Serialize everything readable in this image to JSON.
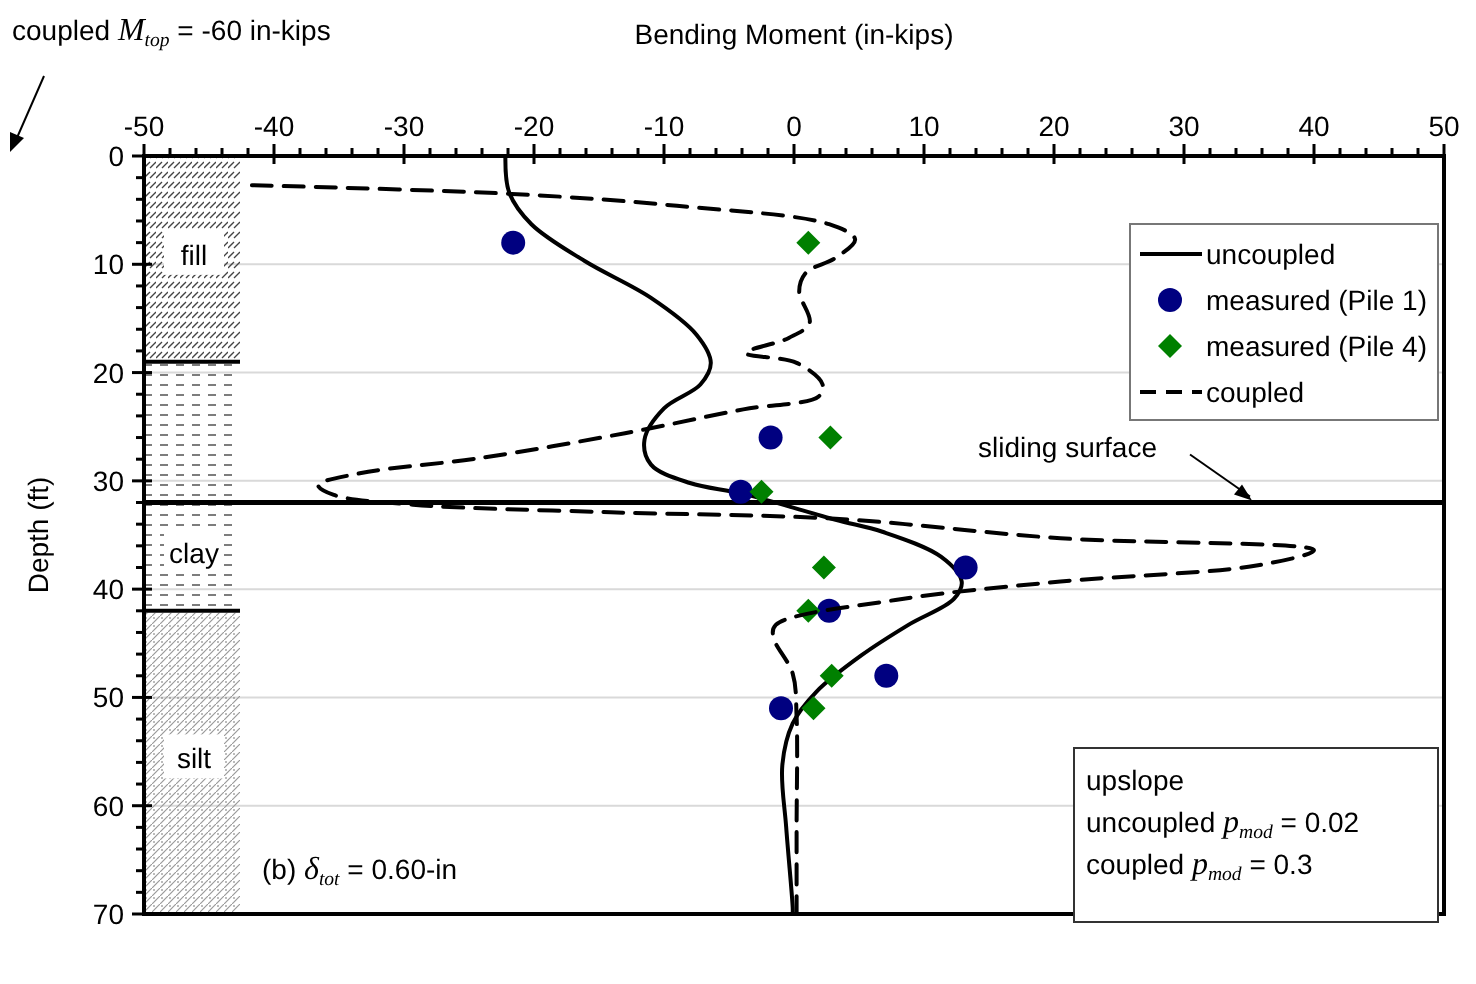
{
  "chart_data": {
    "type": "line",
    "xlabel": "Bending Moment (in-kips)",
    "ylabel": "Depth (ft)",
    "xlim": [
      -50,
      50
    ],
    "xticks": [
      -50,
      {
        "value": -48,
        "label": null
      },
      {
        "value": -46,
        "label": null
      },
      {
        "value": -44,
        "label": null
      },
      {
        "value": -42,
        "label": null
      },
      -40,
      {
        "value": -38,
        "label": null
      },
      {
        "value": -36,
        "label": null
      },
      {
        "value": -34,
        "label": null
      },
      {
        "value": -32,
        "label": null
      },
      -30,
      {
        "value": -28,
        "label": null
      },
      {
        "value": -26,
        "label": null
      },
      {
        "value": -24,
        "label": null
      },
      {
        "value": -22,
        "label": null
      },
      -20,
      {
        "value": -18,
        "label": null
      },
      {
        "value": -16,
        "label": null
      },
      {
        "value": -14,
        "label": null
      },
      {
        "value": -12,
        "label": null
      },
      -10,
      {
        "value": -8,
        "label": null
      },
      {
        "value": -6,
        "label": null
      },
      {
        "value": -4,
        "label": null
      },
      {
        "value": -2,
        "label": null
      },
      0,
      {
        "value": 2,
        "label": null
      },
      {
        "value": 4,
        "label": null
      },
      {
        "value": 6,
        "label": null
      },
      {
        "value": 8,
        "label": null
      },
      10,
      {
        "value": 12,
        "label": null
      },
      {
        "value": 14,
        "label": null
      },
      {
        "value": 16,
        "label": null
      },
      {
        "value": 18,
        "label": null
      },
      20,
      {
        "value": 22,
        "label": null
      },
      {
        "value": 24,
        "label": null
      },
      {
        "value": 26,
        "label": null
      },
      {
        "value": 28,
        "label": null
      },
      30,
      {
        "value": 32,
        "label": null
      },
      {
        "value": 34,
        "label": null
      },
      {
        "value": 36,
        "label": null
      },
      {
        "value": 38,
        "label": null
      },
      40,
      {
        "value": 42,
        "label": null
      },
      {
        "value": 44,
        "label": null
      },
      {
        "value": 46,
        "label": null
      },
      {
        "value": 48,
        "label": null
      },
      50
    ],
    "ylim": [
      70,
      0
    ],
    "yticks": [
      0,
      {
        "value": 2,
        "label": null
      },
      {
        "value": 4,
        "label": null
      },
      {
        "value": 6,
        "label": null
      },
      {
        "value": 8,
        "label": null
      },
      10,
      {
        "value": 12,
        "label": null
      },
      {
        "value": 14,
        "label": null
      },
      {
        "value": 16,
        "label": null
      },
      {
        "value": 18,
        "label": null
      },
      20,
      {
        "value": 22,
        "label": null
      },
      {
        "value": 24,
        "label": null
      },
      {
        "value": 26,
        "label": null
      },
      {
        "value": 28,
        "label": null
      },
      30,
      {
        "value": 32,
        "label": null
      },
      {
        "value": 34,
        "label": null
      },
      {
        "value": 36,
        "label": null
      },
      {
        "value": 38,
        "label": null
      },
      40,
      {
        "value": 42,
        "label": null
      },
      {
        "value": 44,
        "label": null
      },
      {
        "value": 46,
        "label": null
      },
      {
        "value": 48,
        "label": null
      },
      50,
      {
        "value": 52,
        "label": null
      },
      {
        "value": 54,
        "label": null
      },
      {
        "value": 56,
        "label": null
      },
      {
        "value": 58,
        "label": null
      },
      60,
      {
        "value": 62,
        "label": null
      },
      {
        "value": 64,
        "label": null
      },
      {
        "value": 66,
        "label": null
      },
      {
        "value": 68,
        "label": null
      },
      70
    ],
    "grid": "y",
    "legend": "top right",
    "series": [
      {
        "name": "uncoupled",
        "color": "#000000",
        "line_style": "solid",
        "marker": "none",
        "x": [
          -22.2,
          -21.9,
          -20.2,
          -16.1,
          -11.0,
          -7.5,
          -6.4,
          -7.2,
          -10.0,
          -11.5,
          -11.0,
          -8.0,
          -3.9,
          3.2,
          6.8,
          11.3,
          12.9,
          12.3,
          8.8,
          5.2,
          1.7,
          -0.1,
          -0.9,
          -0.6,
          -0.1,
          -0.1
        ],
        "values": [
          0,
          3.4,
          6.3,
          9.7,
          13.1,
          16.5,
          19.1,
          21.1,
          23.3,
          26.2,
          28.5,
          30.2,
          31.2,
          33.6,
          34.7,
          37.0,
          39.3,
          40.9,
          43.3,
          46.1,
          49.5,
          52.4,
          56.3,
          62.0,
          69.4,
          70
        ]
      },
      {
        "name": "measured (Pile 1)",
        "type": "scatter",
        "color": "#000080",
        "marker": "circle",
        "x": [
          -21.6,
          -1.8,
          -4.1,
          13.2,
          2.7,
          7.1,
          -1.0
        ],
        "values": [
          8,
          26,
          31,
          38,
          42,
          48,
          51
        ]
      },
      {
        "name": "measured (Pile 4)",
        "type": "scatter",
        "color": "#008000",
        "marker": "diamond",
        "x": [
          1.1,
          2.8,
          -2.5,
          2.3,
          1.1,
          2.9,
          1.5
        ],
        "values": [
          8,
          26,
          31,
          38,
          42,
          48,
          51
        ]
      },
      {
        "name": "coupled",
        "color": "#000000",
        "line_style": "dashed",
        "marker": "none",
        "x": [
          -41.7,
          -21.7,
          -9.0,
          2.7,
          4.7,
          3.2,
          0.9,
          0.4,
          1.2,
          -0.4,
          -3.7,
          0.2,
          2.2,
          1.9,
          -3.9,
          -13.0,
          -24.2,
          -33.4,
          -36.6,
          -35.4,
          -29.3,
          -14.1,
          3.2,
          20.5,
          40.0,
          35.7,
          20.5,
          7.8,
          -1.4,
          -1.6,
          -0.1,
          0.2,
          0.2,
          0.2
        ],
        "values": [
          2.7,
          3.5,
          4.6,
          6.3,
          7.7,
          9.4,
          10.8,
          12.5,
          15.4,
          16.8,
          18.2,
          19.1,
          21.1,
          22.2,
          23.4,
          25.6,
          27.9,
          29.3,
          30.4,
          31.3,
          32.2,
          32.9,
          33.5,
          35.3,
          36.4,
          37.8,
          39.3,
          41.0,
          43.3,
          44.4,
          47.8,
          51.8,
          62,
          70
        ]
      }
    ],
    "ref_lines": [
      {
        "axis": "y",
        "value": 32,
        "label": "sliding surface",
        "color": "#000000",
        "line_style": "solid"
      }
    ],
    "annotations": [
      "coupled M$_{top}$ = -60 in-kips",
      "(b) δ$_{tot}$ = 0.60-in",
      "upslope",
      "uncoupled p$_{mod}$ = 0.02",
      "coupled p$_{mod}$ = 0.3"
    ],
    "bands": [
      {
        "axis": "y",
        "from": 0,
        "to": 19,
        "label": "fill"
      },
      {
        "axis": "y",
        "from": 19,
        "to": 42,
        "label": "clay"
      },
      {
        "axis": "y",
        "from": 42,
        "to": 70,
        "label": "silt"
      }
    ]
  }
}
